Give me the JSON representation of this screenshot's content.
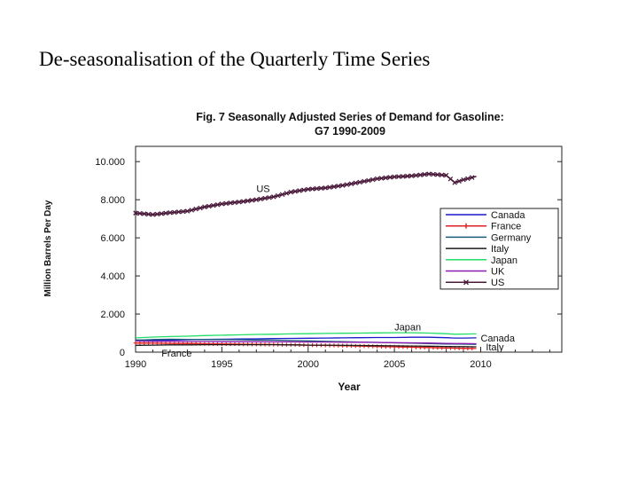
{
  "slide": {
    "title": "De-seasonalisation of the Quarterly Time Series"
  },
  "chart_data": {
    "type": "line",
    "title_line1": "Fig. 7 Seasonally Adjusted Series of Demand for Gasoline:",
    "title_line2": "G7 1990-2009",
    "xlabel": "Year",
    "ylabel": "Million Barrels Per Day",
    "xlim": [
      1990,
      2014.7
    ],
    "ylim": [
      0,
      10.8
    ],
    "x_ticks": [
      1990,
      1995,
      2000,
      2005,
      2010
    ],
    "y_ticks": [
      0,
      2,
      4,
      6,
      8,
      10
    ],
    "y_tick_labels": [
      "0",
      "2.000",
      "4.000",
      "6.000",
      "8.000",
      "10.000"
    ],
    "grid": false,
    "legend_position": "right",
    "x": [
      1990,
      1991,
      1992,
      1993,
      1994,
      1995,
      1996,
      1997,
      1998,
      1999,
      2000,
      2001,
      2002,
      2003,
      2004,
      2005,
      2006,
      2007,
      2008,
      2008.5,
      2009,
      2009.75
    ],
    "series": [
      {
        "name": "Canada",
        "color": "#1a1acc",
        "marker": "none",
        "values": [
          0.64,
          0.62,
          0.63,
          0.65,
          0.67,
          0.68,
          0.69,
          0.7,
          0.71,
          0.72,
          0.73,
          0.74,
          0.75,
          0.76,
          0.77,
          0.77,
          0.78,
          0.78,
          0.76,
          0.74,
          0.74,
          0.75
        ]
      },
      {
        "name": "France",
        "color": "#e02020",
        "marker": "plus",
        "values": [
          0.48,
          0.47,
          0.46,
          0.45,
          0.44,
          0.43,
          0.42,
          0.41,
          0.4,
          0.39,
          0.37,
          0.36,
          0.34,
          0.32,
          0.3,
          0.28,
          0.26,
          0.24,
          0.22,
          0.21,
          0.2,
          0.19
        ]
      },
      {
        "name": "Germany",
        "color": "#1a5a7a",
        "marker": "none",
        "values": [
          0.62,
          0.66,
          0.68,
          0.67,
          0.66,
          0.66,
          0.65,
          0.64,
          0.63,
          0.61,
          0.59,
          0.57,
          0.55,
          0.53,
          0.51,
          0.49,
          0.47,
          0.45,
          0.43,
          0.43,
          0.42,
          0.41
        ]
      },
      {
        "name": "Italy",
        "color": "#1a1a1a",
        "marker": "none",
        "values": [
          0.36,
          0.37,
          0.38,
          0.38,
          0.39,
          0.39,
          0.39,
          0.39,
          0.39,
          0.38,
          0.37,
          0.37,
          0.36,
          0.35,
          0.34,
          0.33,
          0.32,
          0.31,
          0.3,
          0.29,
          0.29,
          0.28
        ]
      },
      {
        "name": "Japan",
        "color": "#22dd66",
        "marker": "none",
        "values": [
          0.75,
          0.79,
          0.82,
          0.84,
          0.87,
          0.89,
          0.91,
          0.93,
          0.94,
          0.96,
          0.97,
          0.98,
          0.99,
          1.0,
          1.01,
          1.02,
          1.02,
          1.0,
          0.97,
          0.94,
          0.95,
          0.96
        ]
      },
      {
        "name": "UK",
        "color": "#8a1ab0",
        "marker": "none",
        "values": [
          0.58,
          0.57,
          0.57,
          0.56,
          0.56,
          0.55,
          0.55,
          0.55,
          0.54,
          0.54,
          0.53,
          0.53,
          0.52,
          0.52,
          0.51,
          0.5,
          0.49,
          0.48,
          0.46,
          0.45,
          0.45,
          0.44
        ]
      },
      {
        "name": "US",
        "color": "#4a1a3a",
        "marker": "x",
        "values": [
          7.3,
          7.22,
          7.32,
          7.4,
          7.62,
          7.78,
          7.88,
          8.0,
          8.15,
          8.4,
          8.55,
          8.62,
          8.75,
          8.92,
          9.1,
          9.2,
          9.25,
          9.35,
          9.28,
          8.9,
          9.05,
          9.22
        ]
      }
    ],
    "annotations": [
      {
        "text": "US",
        "x": 1997.0,
        "y": 8.6
      },
      {
        "text": "Japan",
        "x": 2005.0,
        "y": 1.32
      },
      {
        "text": "Canada",
        "x": 2010.0,
        "y": 0.74
      },
      {
        "text": "Italy",
        "x": 2010.3,
        "y": 0.27
      },
      {
        "text": "France",
        "x": 1991.5,
        "y": -0.04
      }
    ]
  }
}
